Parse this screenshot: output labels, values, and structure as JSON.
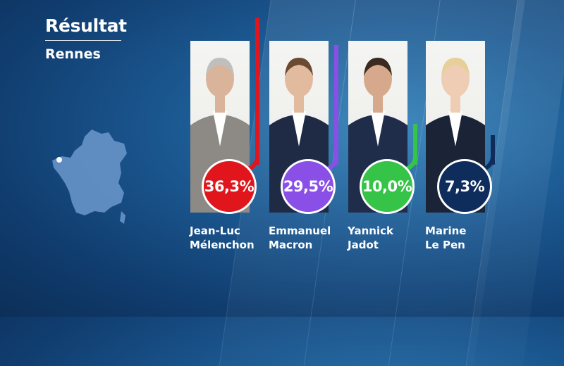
{
  "header": {
    "title": "Résultat",
    "subtitle": "Rennes"
  },
  "map": {
    "icon": "france-map-icon",
    "marker": "rennes-location-marker"
  },
  "chart_data": {
    "type": "bar",
    "unit": "%",
    "categories": [
      "Jean-Luc Mélenchon",
      "Emmanuel Macron",
      "Yannick Jadot",
      "Marine Le Pen"
    ],
    "values": [
      36.3,
      29.5,
      10.0,
      7.3
    ],
    "labels": [
      "36,3%",
      "29,5%",
      "10,0%",
      "7,3%"
    ],
    "ylim": [
      0,
      40
    ],
    "name_lines": [
      [
        "Jean-Luc",
        "Mélenchon"
      ],
      [
        "Emmanuel",
        "Macron"
      ],
      [
        "Yannick",
        "Jadot"
      ],
      [
        "Marine",
        "Le Pen"
      ]
    ],
    "colors": [
      "#e0161c",
      "#8a4fe6",
      "#35c447",
      "#0f2d5c"
    ],
    "skin": [
      "#d9b49a",
      "#e2bb9e",
      "#d7a98c",
      "#efcdb4"
    ],
    "hair": [
      "#bfbfbf",
      "#6a4a32",
      "#3a2a20",
      "#e6cf98"
    ],
    "jacket": [
      "#8d8a86",
      "#1f2b45",
      "#1f2d4a",
      "#1b2436"
    ]
  }
}
